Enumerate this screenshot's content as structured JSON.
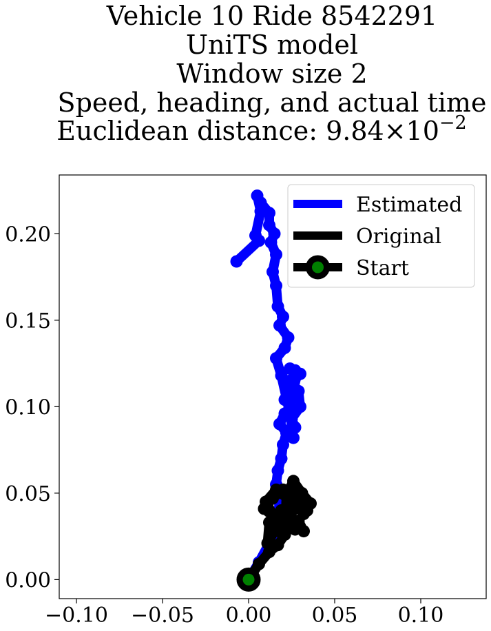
{
  "chart_data": {
    "type": "line",
    "title_lines": [
      "Vehicle 10 Ride 8542291",
      "UniTS model",
      "Window size 2",
      "Speed, heading, and actual time",
      "Euclidean distance: 9.84×10"
    ],
    "title_exponent": "−2",
    "xlim": [
      -0.11,
      0.138
    ],
    "ylim": [
      -0.011,
      0.234
    ],
    "xticks": [
      -0.1,
      -0.05,
      0.0,
      0.05,
      0.1
    ],
    "xtick_labels": [
      "−0.10",
      "−0.05",
      "0.00",
      "0.05",
      "0.10"
    ],
    "yticks": [
      0.0,
      0.05,
      0.1,
      0.15,
      0.2
    ],
    "ytick_labels": [
      "0.00",
      "0.05",
      "0.10",
      "0.15",
      "0.20"
    ],
    "grid": false,
    "legend_position": "top-right",
    "series": [
      {
        "name": "Estimated",
        "color": "#0000ff",
        "x": [
          0.0,
          0.006,
          0.012,
          0.016,
          0.018,
          0.016,
          0.017,
          0.019,
          0.02,
          0.022,
          0.018,
          0.021,
          0.024,
          0.021,
          0.026,
          0.025,
          0.028,
          0.024,
          0.027,
          0.03,
          0.024,
          0.029,
          0.03,
          0.025,
          0.027,
          0.022,
          0.026,
          0.024,
          0.019,
          0.016,
          0.021,
          0.023,
          0.018,
          0.02,
          0.017,
          0.016,
          0.014,
          0.016,
          0.013,
          0.015,
          0.012,
          0.012,
          0.007,
          0.005,
          0.007,
          0.004,
          0.006,
          -0.007
        ],
        "y": [
          0.0,
          0.01,
          0.021,
          0.03,
          0.045,
          0.055,
          0.063,
          0.07,
          0.078,
          0.085,
          0.09,
          0.096,
          0.1,
          0.104,
          0.112,
          0.105,
          0.118,
          0.122,
          0.121,
          0.119,
          0.115,
          0.109,
          0.1,
          0.093,
          0.088,
          0.085,
          0.082,
          0.096,
          0.118,
          0.128,
          0.134,
          0.14,
          0.147,
          0.152,
          0.158,
          0.17,
          0.178,
          0.188,
          0.195,
          0.2,
          0.205,
          0.212,
          0.218,
          0.222,
          0.213,
          0.199,
          0.196,
          0.184
        ]
      },
      {
        "name": "Original",
        "color": "#000000",
        "x": [
          0.0,
          0.006,
          0.012,
          0.017,
          0.021,
          0.02,
          0.015,
          0.011,
          0.012,
          0.019,
          0.023,
          0.027,
          0.029,
          0.032,
          0.024,
          0.028,
          0.034,
          0.029,
          0.02,
          0.014,
          0.011,
          0.009,
          0.016,
          0.015,
          0.021,
          0.022,
          0.026,
          0.031,
          0.036,
          0.032,
          0.025,
          0.016,
          0.01,
          0.015
        ],
        "y": [
          0.0,
          0.009,
          0.016,
          0.02,
          0.026,
          0.032,
          0.028,
          0.021,
          0.033,
          0.04,
          0.036,
          0.029,
          0.034,
          0.028,
          0.036,
          0.044,
          0.04,
          0.048,
          0.052,
          0.047,
          0.044,
          0.041,
          0.035,
          0.028,
          0.026,
          0.049,
          0.057,
          0.05,
          0.044,
          0.038,
          0.045,
          0.052,
          0.045,
          0.036
        ]
      }
    ],
    "start_point": {
      "name": "Start",
      "x": 0.0,
      "y": 0.0,
      "face_color": "#008000",
      "edge_color": "#000000"
    },
    "legend_entries": [
      "Estimated",
      "Original",
      "Start"
    ]
  }
}
